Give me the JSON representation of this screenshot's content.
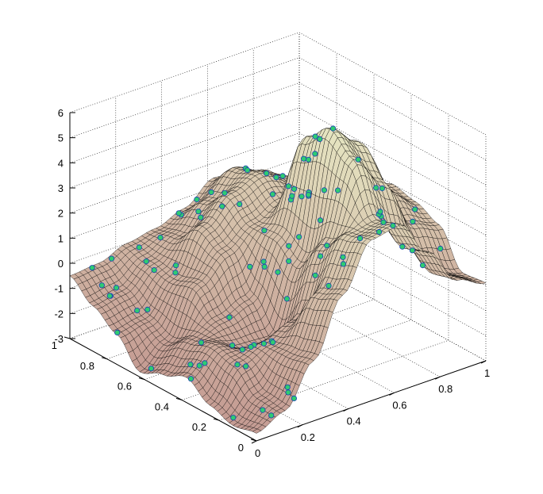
{
  "chart_data": {
    "type": "surface",
    "title": "",
    "xlabel": "",
    "ylabel": "",
    "zlabel": "",
    "xlim": [
      0,
      1
    ],
    "ylim": [
      0,
      1
    ],
    "zlim": [
      -3,
      6
    ],
    "grid": true,
    "x_ticks": [
      "0",
      "0.2",
      "0.4",
      "0.6",
      "0.8",
      "1"
    ],
    "y_ticks": [
      "0",
      "0.2",
      "0.4",
      "0.6",
      "0.8",
      "1"
    ],
    "z_ticks": [
      "-3",
      "-2",
      "-1",
      "0",
      "1",
      "2",
      "3",
      "4",
      "5",
      "6"
    ],
    "surface": {
      "description_values": "z over x,y grid shown as meshed surface",
      "grid_x": [
        0,
        0.125,
        0.25,
        0.375,
        0.5,
        0.625,
        0.75,
        0.875,
        1
      ],
      "grid_y": [
        0,
        0.125,
        0.25,
        0.375,
        0.5,
        0.625,
        0.75,
        0.875,
        1
      ],
      "z": [
        [
          -2.7,
          -2.2,
          -0.6,
          1.6,
          3.4,
          3.6,
          2.1,
          0.6,
          0.1
        ],
        [
          -2.9,
          -2.1,
          -0.8,
          1.2,
          3.1,
          3.3,
          1.8,
          0.4,
          0.0
        ],
        [
          -2.6,
          -1.3,
          -0.9,
          -0.4,
          2.2,
          5.2,
          3.9,
          1.8,
          1.4
        ],
        [
          -2.0,
          -1.1,
          -1.6,
          -1.7,
          1.0,
          5.9,
          5.0,
          2.6,
          1.8
        ],
        [
          -2.4,
          -1.4,
          -1.0,
          -0.6,
          1.6,
          5.1,
          4.5,
          2.4,
          2.0
        ],
        [
          -2.8,
          -2.0,
          -0.1,
          0.8,
          1.5,
          2.0,
          1.8,
          1.5,
          1.2
        ],
        [
          -1.8,
          -1.6,
          -0.4,
          1.3,
          2.2,
          2.6,
          2.0,
          1.2,
          0.6
        ],
        [
          -1.2,
          -1.0,
          -0.2,
          0.4,
          1.4,
          2.3,
          1.8,
          0.6,
          -0.3
        ],
        [
          -0.5,
          -0.4,
          0.0,
          0.2,
          0.6,
          1.4,
          1.2,
          0.0,
          -0.8
        ]
      ]
    },
    "points": {
      "marker": "circle",
      "count": 100
    },
    "colors": {
      "surface_fill_low": "#c49a92",
      "surface_fill_high": "#e6e6c2",
      "mesh_line": "#000000",
      "marker_fill": "#2ecc71",
      "marker_edge": "#1f3fb4",
      "grid_line": "#000000"
    }
  }
}
